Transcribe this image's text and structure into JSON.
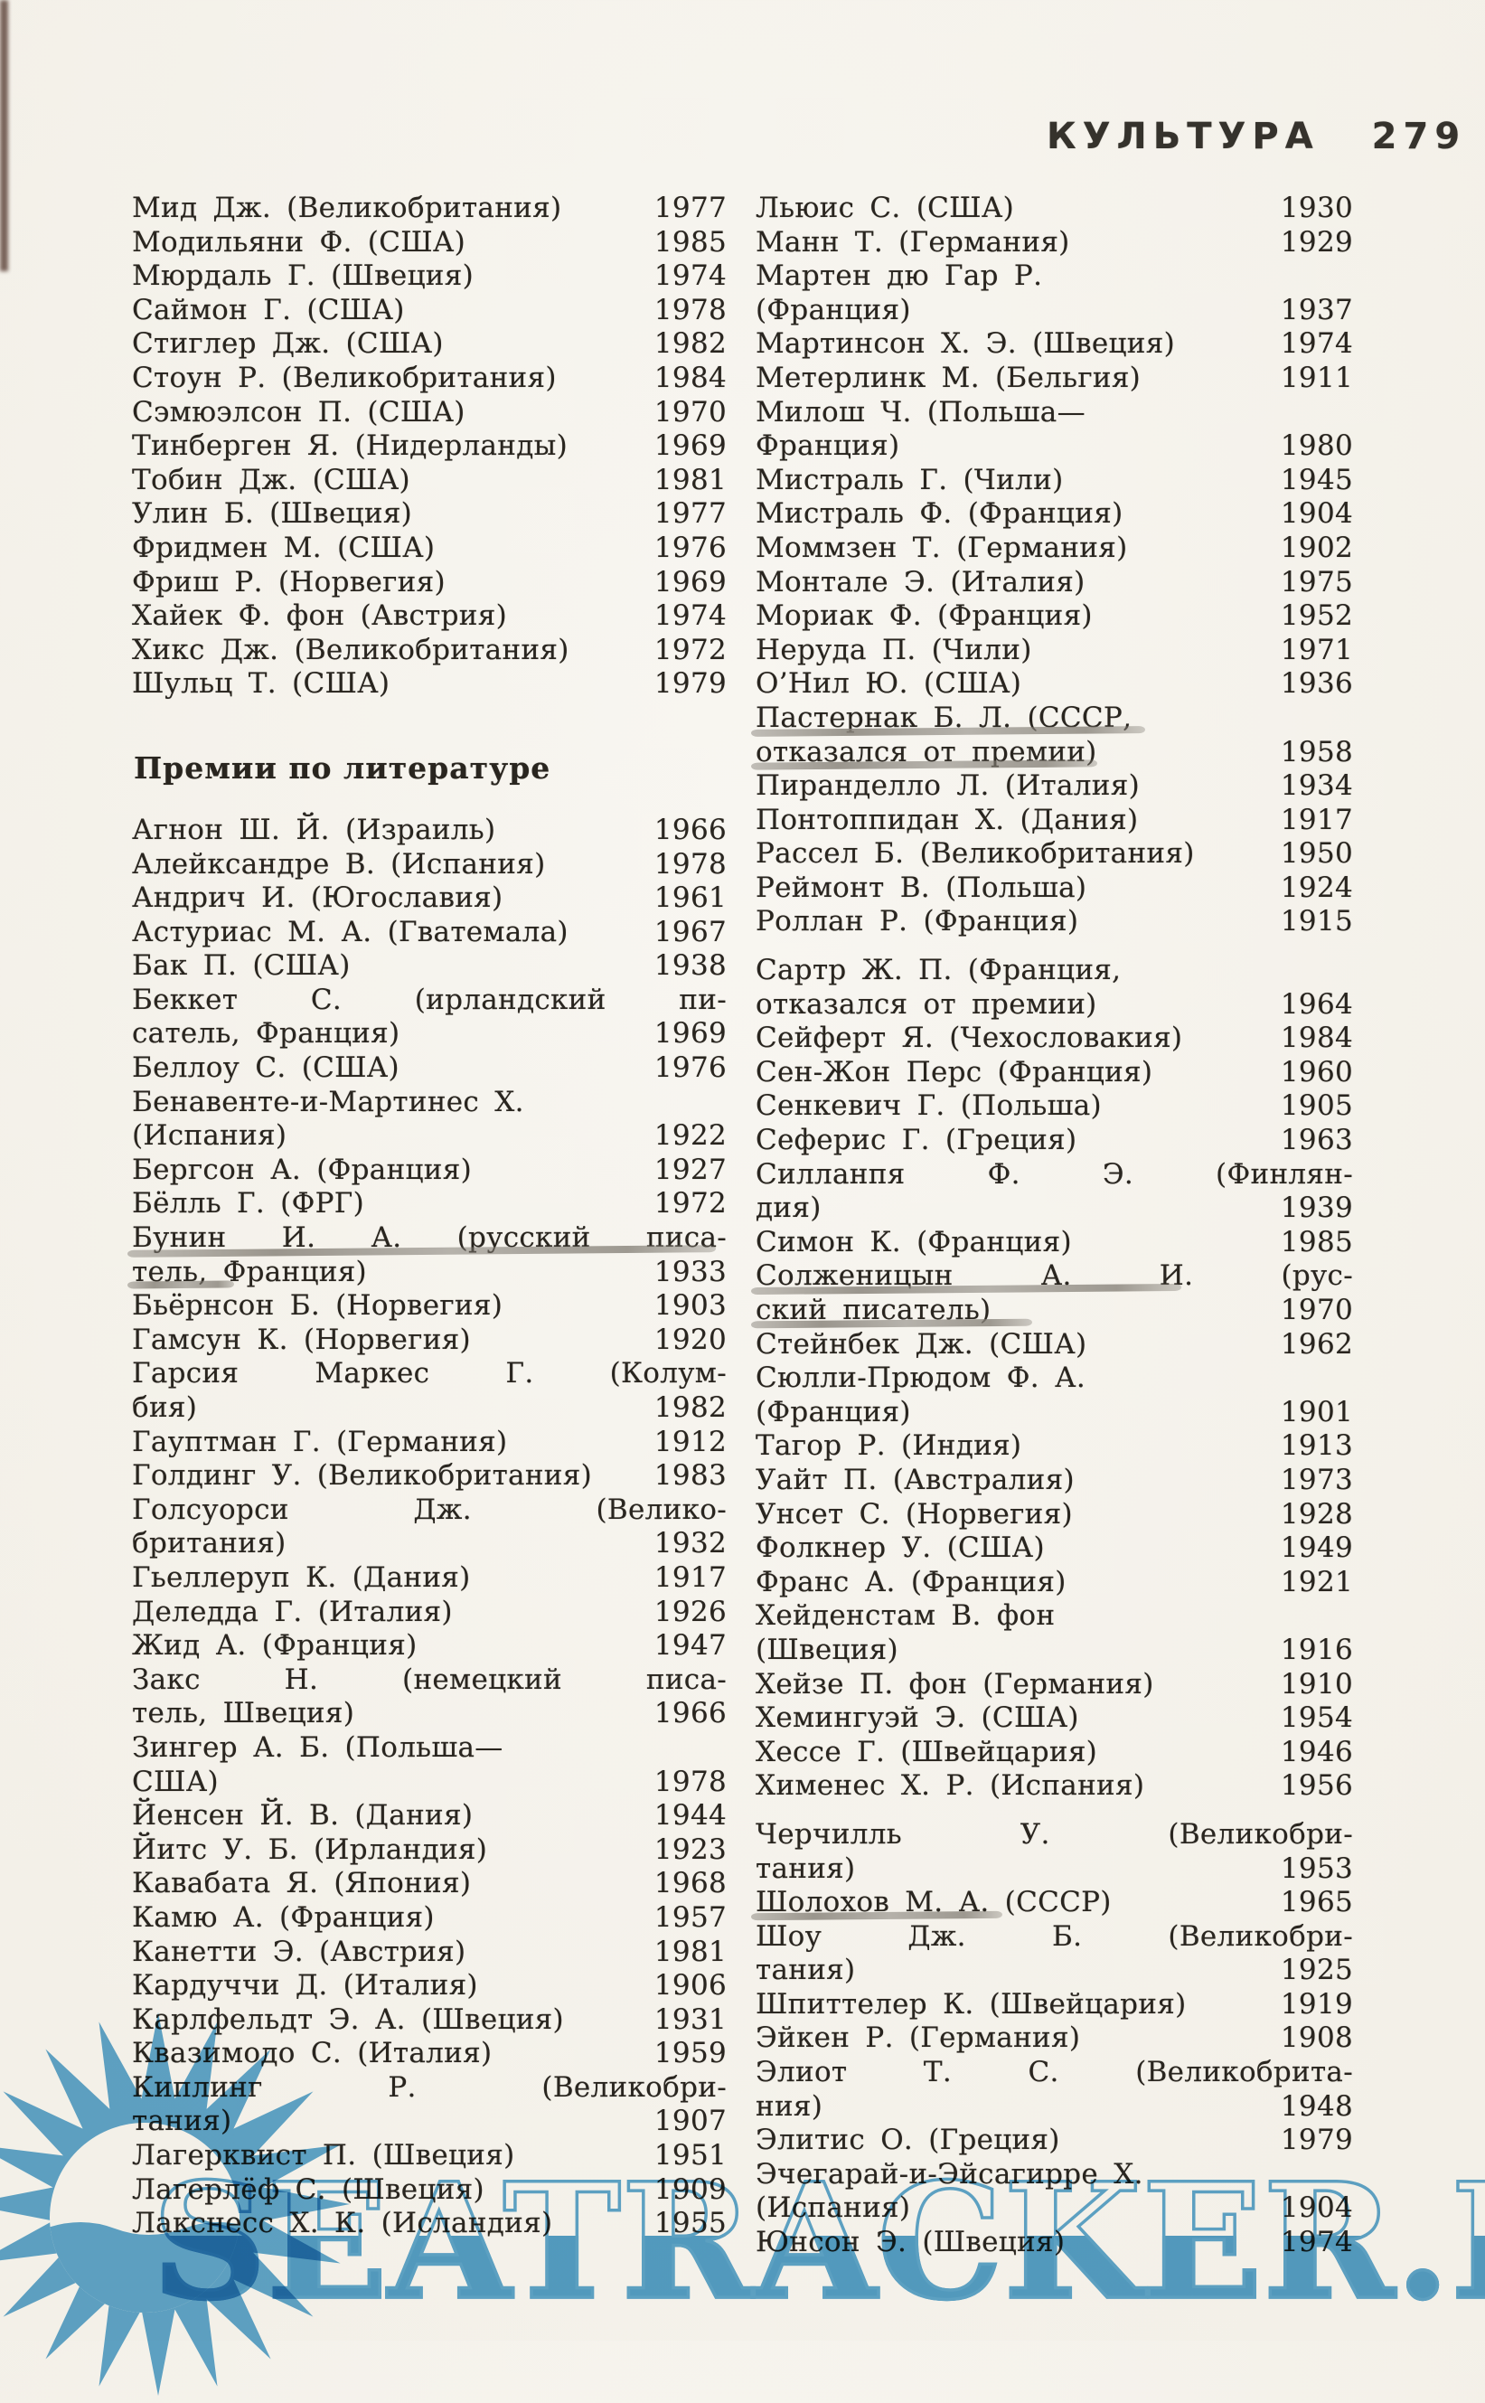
{
  "header": {
    "title": "КУЛЬТУРА",
    "page_number": "279"
  },
  "section_heading": "Премии по литературе",
  "watermark": {
    "text": "SEATRACKER.RU",
    "color": "#57a4d1"
  },
  "left_column": {
    "economics_entries": [
      {
        "lines": [
          {
            "text": "Мид Дж. (Великобритания)",
            "year": "1977"
          }
        ]
      },
      {
        "lines": [
          {
            "text": "Модильяни Ф. (США)",
            "year": "1985"
          }
        ]
      },
      {
        "lines": [
          {
            "text": "Мюрдаль Г. (Швеция)",
            "year": "1974"
          }
        ]
      },
      {
        "lines": [
          {
            "text": "Саймон Г. (США)",
            "year": "1978"
          }
        ]
      },
      {
        "lines": [
          {
            "text": "Стиглер Дж. (США)",
            "year": "1982"
          }
        ]
      },
      {
        "lines": [
          {
            "text": "Стоун Р. (Великобритания)",
            "year": "1984"
          }
        ]
      },
      {
        "lines": [
          {
            "text": "Сэмюэлсон П. (США)",
            "year": "1970"
          }
        ]
      },
      {
        "lines": [
          {
            "text": "Тинберген Я. (Нидерланды)",
            "year": "1969"
          }
        ]
      },
      {
        "lines": [
          {
            "text": "Тобин Дж. (США)",
            "year": "1981"
          }
        ]
      },
      {
        "lines": [
          {
            "text": "Улин Б. (Швеция)",
            "year": "1977"
          }
        ]
      },
      {
        "lines": [
          {
            "text": "Фридмен М. (США)",
            "year": "1976"
          }
        ]
      },
      {
        "lines": [
          {
            "text": "Фриш Р. (Норвегия)",
            "year": "1969"
          }
        ]
      },
      {
        "lines": [
          {
            "text": "Хайек Ф. фон (Австрия)",
            "year": "1974"
          }
        ]
      },
      {
        "lines": [
          {
            "text": "Хикс Дж. (Великобритания)",
            "year": "1972"
          }
        ]
      },
      {
        "lines": [
          {
            "text": "Шульц Т. (США)",
            "year": "1979"
          }
        ]
      }
    ],
    "literature_entries": [
      {
        "lines": [
          {
            "text": "Агнон Ш. Й. (Израиль)",
            "year": "1966"
          }
        ]
      },
      {
        "lines": [
          {
            "text": "Алейксандре В. (Испания)",
            "year": "1978"
          }
        ]
      },
      {
        "lines": [
          {
            "text": "Андрич И. (Югославия)",
            "year": "1961"
          }
        ]
      },
      {
        "lines": [
          {
            "text": "Астуриас М. А. (Гватемала)",
            "year": "1967"
          }
        ]
      },
      {
        "lines": [
          {
            "text": "Бак П. (США)",
            "year": "1938"
          }
        ]
      },
      {
        "lines": [
          {
            "text": "Беккет С. (ирландский пи-"
          },
          {
            "text": "сатель, Франция)",
            "year": "1969"
          }
        ]
      },
      {
        "lines": [
          {
            "text": "Беллоу С. (США)",
            "year": "1976"
          }
        ]
      },
      {
        "lines": [
          {
            "text": "Бенавенте-и-Мартинес Х."
          },
          {
            "text": "(Испания)",
            "year": "1922"
          }
        ]
      },
      {
        "lines": [
          {
            "text": "Бергсон А. (Франция)",
            "year": "1927"
          }
        ]
      },
      {
        "lines": [
          {
            "text": "Бёлль Г. (ФРГ)",
            "year": "1972"
          }
        ]
      },
      {
        "lines": [
          {
            "text": "Бунин И. А. (русский писа-",
            "underline": 0.99
          },
          {
            "text": "тель, Франция)",
            "year": "1933",
            "underline": 0.18
          }
        ]
      },
      {
        "lines": [
          {
            "text": "Бьёрнсон Б. (Норвегия)",
            "year": "1903"
          }
        ]
      },
      {
        "lines": [
          {
            "text": "Гамсун К. (Норвегия)",
            "year": "1920"
          }
        ]
      },
      {
        "lines": [
          {
            "text": "Гарсия Маркес Г. (Колум-"
          },
          {
            "text": "бия)",
            "year": "1982"
          }
        ]
      },
      {
        "lines": [
          {
            "text": "Гауптман Г. (Германия)",
            "year": "1912"
          }
        ]
      },
      {
        "lines": [
          {
            "text": "Голдинг У. (Великобритания)",
            "year": "1983"
          }
        ]
      },
      {
        "lines": [
          {
            "text": "Голсуорси Дж. (Велико-"
          },
          {
            "text": "британия)",
            "year": "1932"
          }
        ]
      },
      {
        "lines": [
          {
            "text": "Гьеллеруп К. (Дания)",
            "year": "1917"
          }
        ]
      },
      {
        "lines": [
          {
            "text": "Деледда Г. (Италия)",
            "year": "1926"
          }
        ]
      },
      {
        "lines": [
          {
            "text": "Жид А. (Франция)",
            "year": "1947"
          }
        ]
      },
      {
        "lines": [
          {
            "text": "Закс Н. (немецкий писа-"
          },
          {
            "text": "тель, Швеция)",
            "year": "1966"
          }
        ]
      },
      {
        "lines": [
          {
            "text": "Зингер А. Б. (Польша—"
          },
          {
            "text": "США)",
            "year": "1978"
          }
        ]
      },
      {
        "lines": [
          {
            "text": "Йенсен Й. В. (Дания)",
            "year": "1944"
          }
        ]
      },
      {
        "lines": [
          {
            "text": "Йитс У. Б. (Ирландия)",
            "year": "1923"
          }
        ]
      },
      {
        "lines": [
          {
            "text": "Кавабата Я. (Япония)",
            "year": "1968"
          }
        ]
      },
      {
        "lines": [
          {
            "text": "Камю А. (Франция)",
            "year": "1957"
          }
        ]
      },
      {
        "lines": [
          {
            "text": "Канетти Э. (Австрия)",
            "year": "1981"
          }
        ]
      },
      {
        "lines": [
          {
            "text": "Кардуччи Д. (Италия)",
            "year": "1906"
          }
        ]
      },
      {
        "lines": [
          {
            "text": "Карлфельдт Э. А. (Швеция)",
            "year": "1931"
          }
        ]
      },
      {
        "lines": [
          {
            "text": "Квазимодо С. (Италия)",
            "year": "1959"
          }
        ]
      },
      {
        "lines": [
          {
            "text": "Киплинг Р. (Великобри-"
          },
          {
            "text": "тания)",
            "year": "1907"
          }
        ]
      },
      {
        "lines": [
          {
            "text": "Лагерквист П. (Швеция)",
            "year": "1951"
          }
        ]
      },
      {
        "lines": [
          {
            "text": "Лагерлёф С. (Швеция)",
            "year": "1909"
          }
        ]
      },
      {
        "lines": [
          {
            "text": "Лакснесс Х. К. (Исландия)",
            "year": "1955"
          }
        ]
      }
    ]
  },
  "right_column": {
    "entries": [
      {
        "lines": [
          {
            "text": "Льюис С. (США)",
            "year": "1930"
          }
        ]
      },
      {
        "lines": [
          {
            "text": "Манн Т. (Германия)",
            "year": "1929"
          }
        ]
      },
      {
        "lines": [
          {
            "text": "Мартен дю Гар Р."
          },
          {
            "text": "(Франция)",
            "year": "1937"
          }
        ]
      },
      {
        "lines": [
          {
            "text": "Мартинсон Х. Э. (Швеция)",
            "year": "1974"
          }
        ]
      },
      {
        "lines": [
          {
            "text": "Метерлинк М. (Бельгия)",
            "year": "1911"
          }
        ]
      },
      {
        "lines": [
          {
            "text": "Милош Ч. (Польша—"
          },
          {
            "text": "Франция)",
            "year": "1980"
          }
        ]
      },
      {
        "lines": [
          {
            "text": "Мистраль Г. (Чили)",
            "year": "1945"
          }
        ]
      },
      {
        "lines": [
          {
            "text": "Мистраль Ф. (Франция)",
            "year": "1904"
          }
        ]
      },
      {
        "lines": [
          {
            "text": "Моммзен Т. (Германия)",
            "year": "1902"
          }
        ]
      },
      {
        "lines": [
          {
            "text": "Монтале Э. (Италия)",
            "year": "1975"
          }
        ]
      },
      {
        "lines": [
          {
            "text": "Мориак Ф. (Франция)",
            "year": "1952"
          }
        ]
      },
      {
        "lines": [
          {
            "text": "Неруда П. (Чили)",
            "year": "1971"
          }
        ]
      },
      {
        "lines": [
          {
            "text": "О’Нил Ю. (США)",
            "year": "1936"
          }
        ]
      },
      {
        "lines": [
          {
            "text": "Пастернак Б. Л. (СССР,",
            "underline": 0.66
          },
          {
            "text": "отказался от премии)",
            "year": "1958",
            "underline": 0.58
          }
        ]
      },
      {
        "lines": [
          {
            "text": "Пиранделло Л. (Италия)",
            "year": "1934"
          }
        ]
      },
      {
        "lines": [
          {
            "text": "Понтоппидан Х. (Дания)",
            "year": "1917"
          }
        ]
      },
      {
        "lines": [
          {
            "text": "Рассел Б. (Великобритания)",
            "year": "1950"
          }
        ]
      },
      {
        "lines": [
          {
            "text": "Реймонт В. (Польша)",
            "year": "1924"
          }
        ]
      },
      {
        "lines": [
          {
            "text": "Роллан Р. (Франция)",
            "year": "1915"
          }
        ]
      },
      {
        "gap_before": true,
        "lines": [
          {
            "text": "Сартр Ж. П. (Франция,"
          },
          {
            "text": "отказался от премии)",
            "year": "1964"
          }
        ]
      },
      {
        "lines": [
          {
            "text": "Сейферт Я. (Чехословакия)",
            "year": "1984"
          }
        ]
      },
      {
        "lines": [
          {
            "text": "Сен-Жон Перс (Франция)",
            "year": "1960"
          }
        ]
      },
      {
        "lines": [
          {
            "text": "Сенкевич Г. (Польша)",
            "year": "1905"
          }
        ]
      },
      {
        "lines": [
          {
            "text": "Сеферис Г. (Греция)",
            "year": "1963"
          }
        ]
      },
      {
        "lines": [
          {
            "text": "Силланпя Ф. Э. (Финлян-"
          },
          {
            "text": "дия)",
            "year": "1939"
          }
        ]
      },
      {
        "lines": [
          {
            "text": "Симон К. (Франция)",
            "year": "1985"
          }
        ]
      },
      {
        "lines": [
          {
            "text": "Солженицын А. И. (рус-",
            "underline": 0.72
          },
          {
            "text": "ский писатель)",
            "year": "1970",
            "underline": 0.47
          }
        ]
      },
      {
        "lines": [
          {
            "text": "Стейнбек Дж. (США)",
            "year": "1962"
          }
        ]
      },
      {
        "lines": [
          {
            "text": "Сюлли-Прюдом Ф. А."
          },
          {
            "text": "(Франция)",
            "year": "1901"
          }
        ]
      },
      {
        "lines": [
          {
            "text": "Тагор Р. (Индия)",
            "year": "1913"
          }
        ]
      },
      {
        "lines": [
          {
            "text": "Уайт П. (Австралия)",
            "year": "1973"
          }
        ]
      },
      {
        "lines": [
          {
            "text": "Унсет С. (Норвегия)",
            "year": "1928"
          }
        ]
      },
      {
        "lines": [
          {
            "text": "Фолкнер У. (США)",
            "year": "1949"
          }
        ]
      },
      {
        "lines": [
          {
            "text": "Франс А. (Франция)",
            "year": "1921"
          }
        ]
      },
      {
        "lines": [
          {
            "text": "Хейденстам В. фон"
          },
          {
            "text": "(Швеция)",
            "year": "1916"
          }
        ]
      },
      {
        "lines": [
          {
            "text": "Хейзе П. фон (Германия)",
            "year": "1910"
          }
        ]
      },
      {
        "lines": [
          {
            "text": "Хемингуэй Э. (США)",
            "year": "1954"
          }
        ]
      },
      {
        "lines": [
          {
            "text": "Хессе Г. (Швейцария)",
            "year": "1946"
          }
        ]
      },
      {
        "lines": [
          {
            "text": "Хименес Х. Р. (Испания)",
            "year": "1956"
          }
        ]
      },
      {
        "gap_before": true,
        "lines": [
          {
            "text": "Черчилль У. (Великобри-"
          },
          {
            "text": "тания)",
            "year": "1953"
          }
        ]
      },
      {
        "lines": [
          {
            "text": "Шолохов М. А. (СССР)",
            "year": "1965",
            "underline": 0.42
          }
        ]
      },
      {
        "lines": [
          {
            "text": "Шоу Дж. Б. (Великобри-"
          },
          {
            "text": "тания)",
            "year": "1925"
          }
        ]
      },
      {
        "lines": [
          {
            "text": "Шпиттелер К. (Швейцария)",
            "year": "1919"
          }
        ]
      },
      {
        "lines": [
          {
            "text": "Эйкен Р. (Германия)",
            "year": "1908"
          }
        ]
      },
      {
        "lines": [
          {
            "text": "Элиот Т. С. (Великобрита-"
          },
          {
            "text": "ния)",
            "year": "1948"
          }
        ]
      },
      {
        "lines": [
          {
            "text": "Элитис О. (Греция)",
            "year": "1979"
          }
        ]
      },
      {
        "lines": [
          {
            "text": "Эчегарай-и-Эйсагирре Х."
          },
          {
            "text": "(Испания)",
            "year": "1904"
          }
        ]
      },
      {
        "lines": [
          {
            "text": "Юнсон Э. (Швеция)",
            "year": "1974"
          }
        ]
      }
    ]
  }
}
